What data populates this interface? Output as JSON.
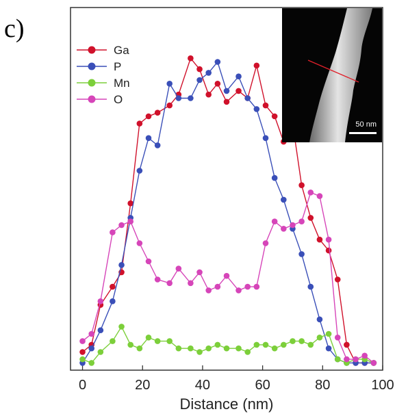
{
  "panel_label": "c)",
  "inset": {
    "scale_label": "50 nm"
  },
  "chart_data": {
    "type": "line",
    "xlabel": "Distance (nm)",
    "ylabel": "",
    "xlim": [
      -4,
      100
    ],
    "ylim": [
      0,
      100
    ],
    "xticks": [
      0,
      20,
      40,
      60,
      80,
      100
    ],
    "grid": false,
    "legend_position": "top-left",
    "series": [
      {
        "name": "Ga",
        "color": "#d0112b",
        "x": [
          0,
          3,
          6,
          10,
          13,
          16,
          19,
          22,
          25,
          29,
          32,
          36,
          39,
          42,
          45,
          48,
          52,
          55,
          58,
          61,
          64,
          67,
          70,
          73,
          76,
          79,
          82,
          85,
          88,
          91,
          94,
          97
        ],
        "y": [
          5,
          7,
          18,
          23,
          27,
          46,
          68,
          70,
          71,
          73,
          76,
          86,
          83,
          76,
          79,
          74,
          77,
          75,
          84,
          73,
          70,
          63,
          68,
          51,
          42,
          36,
          33,
          25,
          7,
          2,
          2,
          2
        ]
      },
      {
        "name": "P",
        "color": "#3a4fb8",
        "x": [
          0,
          3,
          6,
          10,
          13,
          16,
          19,
          22,
          25,
          29,
          32,
          36,
          39,
          42,
          45,
          48,
          52,
          55,
          58,
          61,
          64,
          67,
          70,
          73,
          76,
          79,
          82,
          85,
          88,
          91,
          94,
          97
        ],
        "y": [
          2,
          6,
          11,
          19,
          29,
          42,
          55,
          64,
          62,
          79,
          75,
          75,
          80,
          82,
          85,
          77,
          81,
          75,
          72,
          64,
          53,
          47,
          39,
          32,
          23,
          14,
          6,
          3,
          2,
          2,
          2,
          2
        ]
      },
      {
        "name": "Mn",
        "color": "#7ccf3a",
        "x": [
          0,
          3,
          6,
          10,
          13,
          16,
          19,
          22,
          25,
          29,
          32,
          36,
          39,
          42,
          45,
          48,
          52,
          55,
          58,
          61,
          64,
          67,
          70,
          73,
          76,
          79,
          82,
          85,
          88,
          91,
          94,
          97
        ],
        "y": [
          3,
          2,
          5,
          8,
          12,
          7,
          6,
          9,
          8,
          8,
          6,
          6,
          5,
          6,
          7,
          6,
          6,
          5,
          7,
          7,
          6,
          7,
          8,
          8,
          7,
          9,
          10,
          3,
          2,
          3,
          3,
          2
        ]
      },
      {
        "name": "O",
        "color": "#d645b9",
        "x": [
          0,
          3,
          6,
          10,
          13,
          16,
          19,
          22,
          25,
          29,
          32,
          36,
          39,
          42,
          45,
          48,
          52,
          55,
          58,
          61,
          64,
          67,
          70,
          73,
          76,
          79,
          82,
          85,
          88,
          91,
          94,
          97
        ],
        "y": [
          8,
          10,
          19,
          38,
          40,
          41,
          35,
          30,
          25,
          24,
          28,
          24,
          27,
          22,
          23,
          26,
          22,
          23,
          23,
          35,
          41,
          39,
          40,
          41,
          49,
          48,
          36,
          9,
          3,
          3,
          4,
          2
        ]
      }
    ]
  }
}
